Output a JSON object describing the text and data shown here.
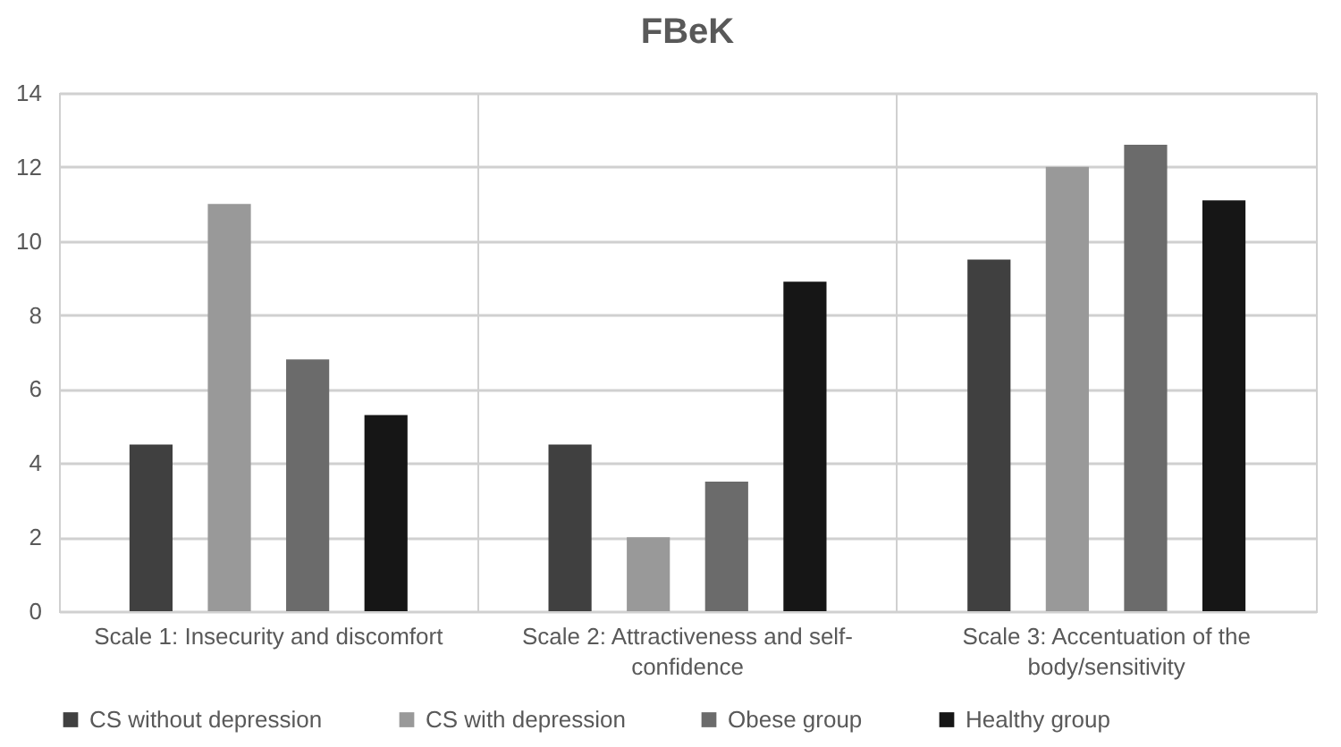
{
  "chart_data": {
    "type": "bar",
    "title": "FBeK",
    "categories": [
      "Scale 1: Insecurity and discomfort",
      "Scale 2: Attractiveness and self-confidence",
      "Scale 3: Accentuation of the body/sensitivity"
    ],
    "series": [
      {
        "name": "CS without depression",
        "color": "#404040",
        "values": [
          4.5,
          4.5,
          9.5
        ]
      },
      {
        "name": "CS with depression",
        "color": "#999999",
        "values": [
          11,
          2,
          12
        ]
      },
      {
        "name": "Obese group",
        "color": "#6b6b6b",
        "values": [
          6.8,
          3.5,
          12.6
        ]
      },
      {
        "name": "Healthy group",
        "color": "#161616",
        "values": [
          5.3,
          8.9,
          11.1
        ]
      }
    ],
    "ylim": [
      0,
      14
    ],
    "yticks": [
      0,
      2,
      4,
      6,
      8,
      10,
      12,
      14
    ],
    "grid": true,
    "legend": "bottom"
  }
}
